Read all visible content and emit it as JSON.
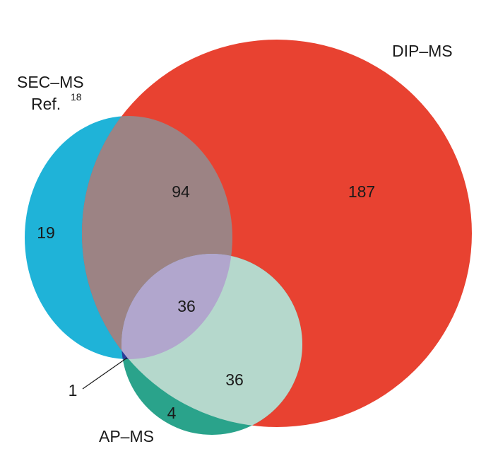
{
  "sets": {
    "sec_ms": {
      "label_line1": "SEC–MS",
      "label_line2": "Ref.",
      "ref": "18",
      "color": "#1fb3d8"
    },
    "dip_ms": {
      "label": "DIP–MS",
      "color": "#e84231"
    },
    "ap_ms": {
      "label": "AP–MS",
      "color": "#2aa38b"
    }
  },
  "overlap_colors": {
    "sec_dip": "#9c8384",
    "sec_dip_ap": "#b1a6cd",
    "dip_ap": "#b5d8cc",
    "sec_ap": "#2a3f9a"
  },
  "counts": {
    "sec_only": "19",
    "sec_dip": "94",
    "dip_only": "187",
    "all_three": "36",
    "dip_ap": "36",
    "ap_only": "4",
    "sec_ap": "1"
  }
}
